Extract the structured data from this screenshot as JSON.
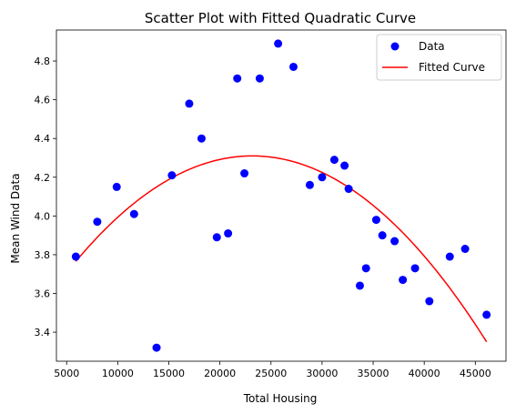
{
  "chart_data": {
    "type": "scatter",
    "title": "Scatter Plot with Fitted Quadratic Curve",
    "xlabel": "Total Housing",
    "ylabel": "Mean Wind Data",
    "xlim": [
      4000,
      48000
    ],
    "ylim": [
      3.25,
      4.96
    ],
    "xticks": [
      5000,
      10000,
      15000,
      20000,
      25000,
      30000,
      35000,
      40000,
      45000
    ],
    "yticks": [
      3.4,
      3.6,
      3.8,
      4.0,
      4.2,
      4.4,
      4.6,
      4.8
    ],
    "grid": false,
    "legend_position": "top-right",
    "series": [
      {
        "name": "Data",
        "kind": "scatter",
        "color": "#0000ff",
        "points": [
          [
            5900,
            3.79
          ],
          [
            8000,
            3.97
          ],
          [
            9900,
            4.15
          ],
          [
            11600,
            4.01
          ],
          [
            13800,
            3.32
          ],
          [
            15300,
            4.21
          ],
          [
            17000,
            4.58
          ],
          [
            18200,
            4.4
          ],
          [
            19700,
            3.89
          ],
          [
            20800,
            3.91
          ],
          [
            21700,
            4.71
          ],
          [
            22400,
            4.22
          ],
          [
            23900,
            4.71
          ],
          [
            25700,
            4.89
          ],
          [
            27200,
            4.77
          ],
          [
            28800,
            4.16
          ],
          [
            30000,
            4.2
          ],
          [
            31200,
            4.29
          ],
          [
            32200,
            4.26
          ],
          [
            32600,
            4.14
          ],
          [
            33700,
            3.64
          ],
          [
            34300,
            3.73
          ],
          [
            35300,
            3.98
          ],
          [
            35900,
            3.9
          ],
          [
            37100,
            3.87
          ],
          [
            37900,
            3.67
          ],
          [
            39100,
            3.73
          ],
          [
            40500,
            3.56
          ],
          [
            42500,
            3.79
          ],
          [
            44000,
            3.83
          ],
          [
            46100,
            3.49
          ]
        ]
      },
      {
        "name": "Fitted Curve",
        "kind": "line",
        "color": "#ff0000",
        "quadratic_fit": {
          "x_vertex": 23170,
          "y_vertex": 4.31,
          "x_ref": 46100,
          "y_ref": 3.35
        },
        "x_range": [
          5900,
          46100
        ]
      }
    ]
  }
}
